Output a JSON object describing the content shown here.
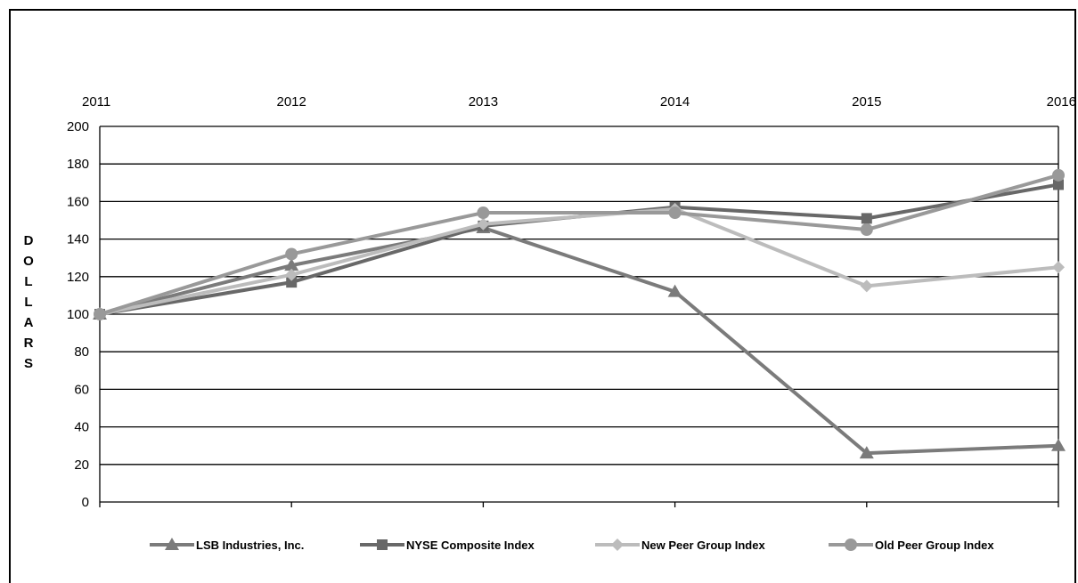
{
  "chart_data": {
    "type": "line",
    "x": [
      "2011",
      "2012",
      "2013",
      "2014",
      "2015",
      "2016"
    ],
    "ylabel": "DOLLARS",
    "ylim": [
      0,
      200
    ],
    "yticks": [
      0,
      20,
      40,
      60,
      80,
      100,
      120,
      140,
      160,
      180,
      200
    ],
    "grid": true,
    "legend_position": "bottom",
    "series": [
      {
        "name": "LSB Industries, Inc.",
        "values": [
          100,
          126,
          146,
          112,
          26,
          30
        ],
        "marker": "triangle",
        "color": "#7b7b7b"
      },
      {
        "name": "NYSE Composite Index",
        "values": [
          100,
          117,
          147,
          157,
          151,
          169
        ],
        "marker": "square",
        "color": "#686868"
      },
      {
        "name": "New Peer Group Index",
        "values": [
          100,
          121,
          148,
          156,
          115,
          125
        ],
        "marker": "diamond",
        "color": "#bcbcbc"
      },
      {
        "name": "Old Peer Group Index",
        "values": [
          100,
          132,
          154,
          154,
          145,
          174
        ],
        "marker": "circle",
        "color": "#999999"
      }
    ]
  }
}
